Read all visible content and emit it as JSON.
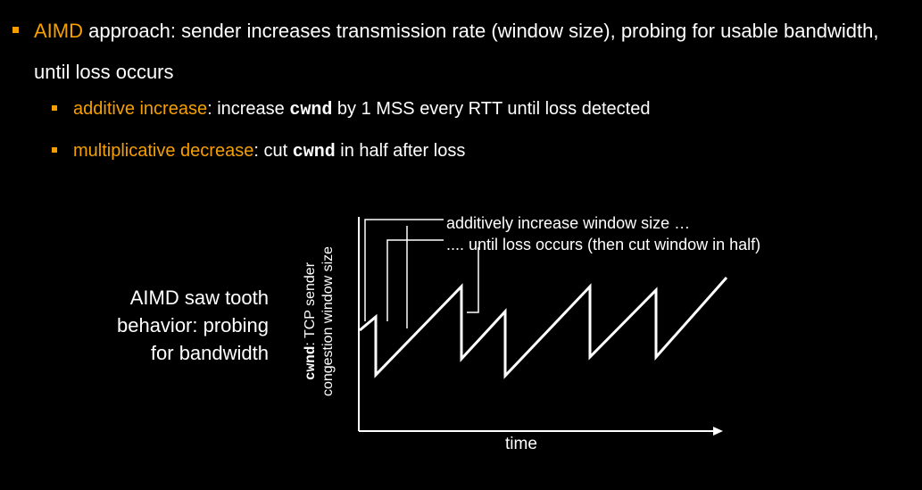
{
  "bullets": {
    "main": {
      "highlight": "AIMD",
      "rest": " approach: sender increases transmission rate (window size), probing for usable bandwidth, until loss occurs"
    },
    "sub": [
      {
        "highlight": "additive increase",
        "pre": ": increase ",
        "code": "cwnd",
        "post": " by 1 MSS every RTT until loss detected"
      },
      {
        "highlight": "multiplicative decrease",
        "pre": ": cut ",
        "code": "cwnd",
        "post": " in half after loss"
      }
    ]
  },
  "caption": {
    "line1": "AIMD saw tooth",
    "line2": "behavior: probing",
    "line3": "for bandwidth"
  },
  "plot": {
    "ylabel_code": "cwnd",
    "ylabel_rest": ": TCP sender",
    "ylabel_line2": "congestion window size",
    "xlabel": "time",
    "annotation_increase": "additively increase window size …",
    "annotation_loss": ".... until loss occurs (then cut window in half)"
  },
  "colors": {
    "accent": "#f5a000",
    "background": "#000000",
    "foreground": "#ffffff"
  }
}
